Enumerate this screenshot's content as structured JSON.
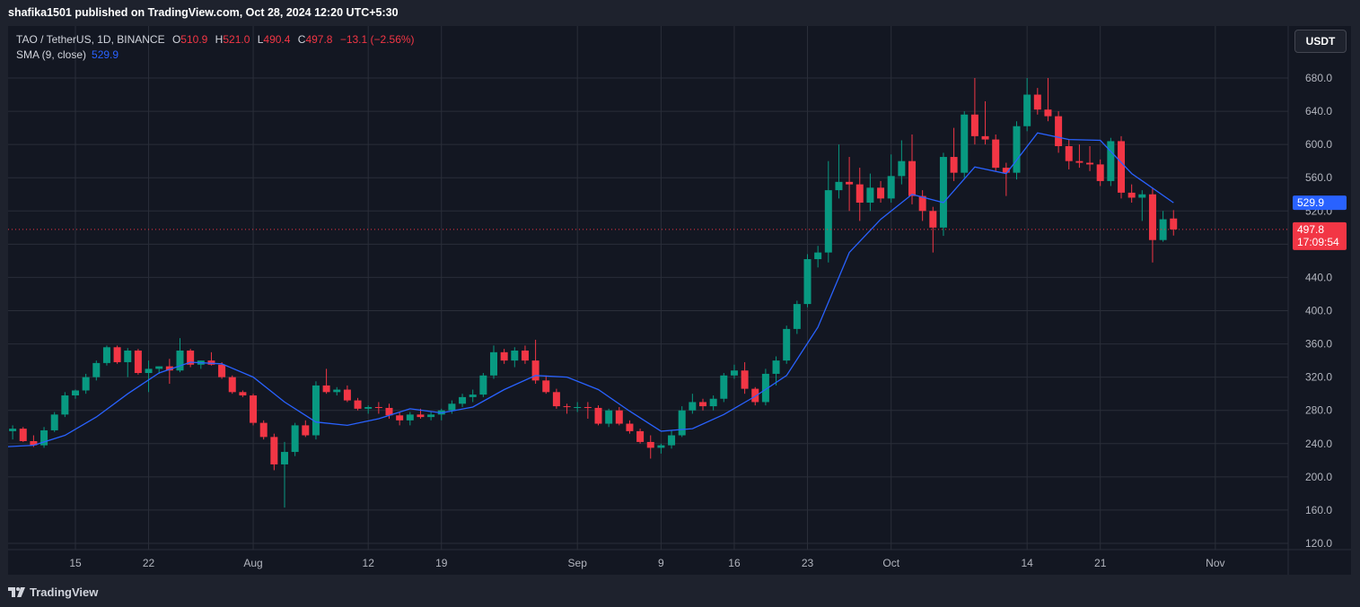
{
  "header": {
    "published": "shafika1501 published on TradingView.com, Oct 28, 2024 12:20 UTC+5:30"
  },
  "legend": {
    "symbol": "TAO / TetherUS, 1D, BINANCE",
    "open_key": "O",
    "open": "510.9",
    "high_key": "H",
    "high": "521.0",
    "low_key": "L",
    "low": "490.4",
    "close_key": "C",
    "close": "497.8",
    "change": "−13.1 (−2.56%)",
    "sma_label": "SMA (9, close)",
    "sma_value": "529.9"
  },
  "currency_button": "USDT",
  "footer": {
    "brand": "TradingView"
  },
  "colors": {
    "up": "#089981",
    "down": "#f23645",
    "sma": "#2962ff",
    "background": "#131722",
    "grid": "#2a2e39"
  },
  "chart_data": {
    "type": "candlestick",
    "y_axis": {
      "min": 100,
      "max": 720,
      "ticks": [
        120,
        160,
        200,
        240,
        280,
        320,
        360,
        400,
        440,
        480,
        520,
        560,
        600,
        640,
        680
      ]
    },
    "x_labels": [
      "15",
      "22",
      "Aug",
      "12",
      "19",
      "Sep",
      "9",
      "16",
      "23",
      "Oct",
      "14",
      "21",
      "Nov"
    ],
    "x_label_dates": [
      "2024-07-15",
      "2024-07-22",
      "2024-08-01",
      "2024-08-12",
      "2024-08-19",
      "2024-09-01",
      "2024-09-09",
      "2024-09-16",
      "2024-09-23",
      "2024-10-01",
      "2024-10-14",
      "2024-10-21",
      "2024-11-01"
    ],
    "candles": [
      {
        "date": "2024-07-08",
        "o": 232,
        "h": 268,
        "l": 230,
        "c": 255
      },
      {
        "date": "2024-07-09",
        "o": 255,
        "h": 262,
        "l": 245,
        "c": 258
      },
      {
        "date": "2024-07-10",
        "o": 258,
        "h": 260,
        "l": 242,
        "c": 243
      },
      {
        "date": "2024-07-11",
        "o": 243,
        "h": 250,
        "l": 236,
        "c": 238
      },
      {
        "date": "2024-07-12",
        "o": 238,
        "h": 260,
        "l": 235,
        "c": 256
      },
      {
        "date": "2024-07-13",
        "o": 256,
        "h": 278,
        "l": 254,
        "c": 275
      },
      {
        "date": "2024-07-14",
        "o": 275,
        "h": 302,
        "l": 272,
        "c": 298
      },
      {
        "date": "2024-07-15",
        "o": 298,
        "h": 305,
        "l": 294,
        "c": 304
      },
      {
        "date": "2024-07-16",
        "o": 304,
        "h": 324,
        "l": 300,
        "c": 320
      },
      {
        "date": "2024-07-17",
        "o": 320,
        "h": 340,
        "l": 316,
        "c": 337
      },
      {
        "date": "2024-07-18",
        "o": 337,
        "h": 358,
        "l": 334,
        "c": 356
      },
      {
        "date": "2024-07-19",
        "o": 356,
        "h": 358,
        "l": 336,
        "c": 338
      },
      {
        "date": "2024-07-20",
        "o": 338,
        "h": 355,
        "l": 320,
        "c": 352
      },
      {
        "date": "2024-07-21",
        "o": 352,
        "h": 354,
        "l": 323,
        "c": 325
      },
      {
        "date": "2024-07-22",
        "o": 325,
        "h": 340,
        "l": 302,
        "c": 330
      },
      {
        "date": "2024-07-23",
        "o": 330,
        "h": 333,
        "l": 324,
        "c": 333
      },
      {
        "date": "2024-07-24",
        "o": 333,
        "h": 342,
        "l": 312,
        "c": 328
      },
      {
        "date": "2024-07-25",
        "o": 328,
        "h": 367,
        "l": 326,
        "c": 352
      },
      {
        "date": "2024-07-26",
        "o": 352,
        "h": 354,
        "l": 332,
        "c": 335
      },
      {
        "date": "2024-07-27",
        "o": 335,
        "h": 340,
        "l": 330,
        "c": 340
      },
      {
        "date": "2024-07-28",
        "o": 340,
        "h": 350,
        "l": 334,
        "c": 335
      },
      {
        "date": "2024-07-29",
        "o": 335,
        "h": 338,
        "l": 318,
        "c": 320
      },
      {
        "date": "2024-07-30",
        "o": 320,
        "h": 322,
        "l": 300,
        "c": 302
      },
      {
        "date": "2024-07-31",
        "o": 302,
        "h": 304,
        "l": 296,
        "c": 298
      },
      {
        "date": "2024-08-01",
        "o": 298,
        "h": 300,
        "l": 262,
        "c": 265
      },
      {
        "date": "2024-08-02",
        "o": 265,
        "h": 268,
        "l": 245,
        "c": 248
      },
      {
        "date": "2024-08-03",
        "o": 248,
        "h": 252,
        "l": 208,
        "c": 215
      },
      {
        "date": "2024-08-04",
        "o": 215,
        "h": 242,
        "l": 163,
        "c": 230
      },
      {
        "date": "2024-08-05",
        "o": 230,
        "h": 265,
        "l": 225,
        "c": 262
      },
      {
        "date": "2024-08-06",
        "o": 262,
        "h": 268,
        "l": 248,
        "c": 250
      },
      {
        "date": "2024-08-07",
        "o": 250,
        "h": 315,
        "l": 245,
        "c": 310
      },
      {
        "date": "2024-08-08",
        "o": 310,
        "h": 330,
        "l": 300,
        "c": 302
      },
      {
        "date": "2024-08-09",
        "o": 302,
        "h": 308,
        "l": 298,
        "c": 305
      },
      {
        "date": "2024-08-10",
        "o": 305,
        "h": 310,
        "l": 290,
        "c": 292
      },
      {
        "date": "2024-08-11",
        "o": 292,
        "h": 295,
        "l": 280,
        "c": 282
      },
      {
        "date": "2024-08-12",
        "o": 282,
        "h": 286,
        "l": 276,
        "c": 284
      },
      {
        "date": "2024-08-13",
        "o": 284,
        "h": 290,
        "l": 276,
        "c": 283
      },
      {
        "date": "2024-08-14",
        "o": 283,
        "h": 288,
        "l": 270,
        "c": 274
      },
      {
        "date": "2024-08-15",
        "o": 274,
        "h": 278,
        "l": 262,
        "c": 268
      },
      {
        "date": "2024-08-16",
        "o": 268,
        "h": 278,
        "l": 262,
        "c": 275
      },
      {
        "date": "2024-08-17",
        "o": 275,
        "h": 282,
        "l": 270,
        "c": 272
      },
      {
        "date": "2024-08-18",
        "o": 272,
        "h": 278,
        "l": 268,
        "c": 275
      },
      {
        "date": "2024-08-19",
        "o": 275,
        "h": 282,
        "l": 268,
        "c": 280
      },
      {
        "date": "2024-08-20",
        "o": 280,
        "h": 292,
        "l": 276,
        "c": 288
      },
      {
        "date": "2024-08-21",
        "o": 288,
        "h": 300,
        "l": 284,
        "c": 296
      },
      {
        "date": "2024-08-22",
        "o": 296,
        "h": 305,
        "l": 290,
        "c": 299
      },
      {
        "date": "2024-08-23",
        "o": 299,
        "h": 325,
        "l": 296,
        "c": 322
      },
      {
        "date": "2024-08-24",
        "o": 322,
        "h": 358,
        "l": 318,
        "c": 350
      },
      {
        "date": "2024-08-25",
        "o": 350,
        "h": 354,
        "l": 336,
        "c": 340
      },
      {
        "date": "2024-08-26",
        "o": 340,
        "h": 356,
        "l": 332,
        "c": 352
      },
      {
        "date": "2024-08-27",
        "o": 352,
        "h": 358,
        "l": 336,
        "c": 340
      },
      {
        "date": "2024-08-28",
        "o": 340,
        "h": 365,
        "l": 312,
        "c": 316
      },
      {
        "date": "2024-08-29",
        "o": 316,
        "h": 322,
        "l": 300,
        "c": 302
      },
      {
        "date": "2024-08-30",
        "o": 302,
        "h": 306,
        "l": 282,
        "c": 285
      },
      {
        "date": "2024-08-31",
        "o": 285,
        "h": 288,
        "l": 276,
        "c": 284
      },
      {
        "date": "2024-09-01",
        "o": 284,
        "h": 290,
        "l": 278,
        "c": 284
      },
      {
        "date": "2024-09-02",
        "o": 284,
        "h": 290,
        "l": 270,
        "c": 283
      },
      {
        "date": "2024-09-03",
        "o": 283,
        "h": 286,
        "l": 262,
        "c": 264
      },
      {
        "date": "2024-09-04",
        "o": 264,
        "h": 282,
        "l": 260,
        "c": 280
      },
      {
        "date": "2024-09-05",
        "o": 280,
        "h": 284,
        "l": 262,
        "c": 264
      },
      {
        "date": "2024-09-06",
        "o": 264,
        "h": 268,
        "l": 252,
        "c": 255
      },
      {
        "date": "2024-09-07",
        "o": 255,
        "h": 258,
        "l": 240,
        "c": 242
      },
      {
        "date": "2024-09-08",
        "o": 242,
        "h": 250,
        "l": 222,
        "c": 235
      },
      {
        "date": "2024-09-09",
        "o": 235,
        "h": 240,
        "l": 228,
        "c": 238
      },
      {
        "date": "2024-09-10",
        "o": 238,
        "h": 256,
        "l": 234,
        "c": 250
      },
      {
        "date": "2024-09-11",
        "o": 250,
        "h": 285,
        "l": 248,
        "c": 280
      },
      {
        "date": "2024-09-12",
        "o": 280,
        "h": 300,
        "l": 276,
        "c": 290
      },
      {
        "date": "2024-09-13",
        "o": 290,
        "h": 294,
        "l": 280,
        "c": 285
      },
      {
        "date": "2024-09-14",
        "o": 285,
        "h": 298,
        "l": 280,
        "c": 294
      },
      {
        "date": "2024-09-15",
        "o": 294,
        "h": 325,
        "l": 290,
        "c": 322
      },
      {
        "date": "2024-09-16",
        "o": 322,
        "h": 335,
        "l": 318,
        "c": 328
      },
      {
        "date": "2024-09-17",
        "o": 328,
        "h": 338,
        "l": 300,
        "c": 306
      },
      {
        "date": "2024-09-18",
        "o": 306,
        "h": 308,
        "l": 286,
        "c": 290
      },
      {
        "date": "2024-09-19",
        "o": 290,
        "h": 330,
        "l": 286,
        "c": 324
      },
      {
        "date": "2024-09-20",
        "o": 324,
        "h": 345,
        "l": 310,
        "c": 340
      },
      {
        "date": "2024-09-21",
        "o": 340,
        "h": 382,
        "l": 336,
        "c": 378
      },
      {
        "date": "2024-09-22",
        "o": 378,
        "h": 412,
        "l": 372,
        "c": 408
      },
      {
        "date": "2024-09-23",
        "o": 408,
        "h": 468,
        "l": 404,
        "c": 462
      },
      {
        "date": "2024-09-24",
        "o": 462,
        "h": 478,
        "l": 452,
        "c": 470
      },
      {
        "date": "2024-09-25",
        "o": 470,
        "h": 580,
        "l": 458,
        "c": 545
      },
      {
        "date": "2024-09-26",
        "o": 545,
        "h": 600,
        "l": 535,
        "c": 555
      },
      {
        "date": "2024-09-27",
        "o": 555,
        "h": 585,
        "l": 520,
        "c": 552
      },
      {
        "date": "2024-09-28",
        "o": 552,
        "h": 572,
        "l": 508,
        "c": 530
      },
      {
        "date": "2024-09-29",
        "o": 530,
        "h": 565,
        "l": 520,
        "c": 548
      },
      {
        "date": "2024-09-30",
        "o": 548,
        "h": 556,
        "l": 530,
        "c": 535
      },
      {
        "date": "2024-10-01",
        "o": 535,
        "h": 588,
        "l": 530,
        "c": 562
      },
      {
        "date": "2024-10-02",
        "o": 562,
        "h": 605,
        "l": 552,
        "c": 580
      },
      {
        "date": "2024-10-03",
        "o": 580,
        "h": 612,
        "l": 528,
        "c": 538
      },
      {
        "date": "2024-10-04",
        "o": 538,
        "h": 545,
        "l": 508,
        "c": 520
      },
      {
        "date": "2024-10-05",
        "o": 520,
        "h": 525,
        "l": 470,
        "c": 500
      },
      {
        "date": "2024-10-06",
        "o": 500,
        "h": 590,
        "l": 490,
        "c": 585
      },
      {
        "date": "2024-10-07",
        "o": 585,
        "h": 620,
        "l": 556,
        "c": 566
      },
      {
        "date": "2024-10-08",
        "o": 566,
        "h": 640,
        "l": 560,
        "c": 636
      },
      {
        "date": "2024-10-09",
        "o": 636,
        "h": 680,
        "l": 600,
        "c": 610
      },
      {
        "date": "2024-10-10",
        "o": 610,
        "h": 652,
        "l": 600,
        "c": 606
      },
      {
        "date": "2024-10-11",
        "o": 606,
        "h": 612,
        "l": 568,
        "c": 572
      },
      {
        "date": "2024-10-12",
        "o": 572,
        "h": 578,
        "l": 538,
        "c": 566
      },
      {
        "date": "2024-10-13",
        "o": 566,
        "h": 628,
        "l": 558,
        "c": 622
      },
      {
        "date": "2024-10-14",
        "o": 622,
        "h": 680,
        "l": 616,
        "c": 660
      },
      {
        "date": "2024-10-15",
        "o": 660,
        "h": 668,
        "l": 636,
        "c": 642
      },
      {
        "date": "2024-10-16",
        "o": 642,
        "h": 680,
        "l": 628,
        "c": 634
      },
      {
        "date": "2024-10-17",
        "o": 634,
        "h": 640,
        "l": 590,
        "c": 598
      },
      {
        "date": "2024-10-18",
        "o": 598,
        "h": 606,
        "l": 570,
        "c": 580
      },
      {
        "date": "2024-10-19",
        "o": 580,
        "h": 600,
        "l": 572,
        "c": 578
      },
      {
        "date": "2024-10-20",
        "o": 578,
        "h": 598,
        "l": 568,
        "c": 576
      },
      {
        "date": "2024-10-21",
        "o": 576,
        "h": 582,
        "l": 550,
        "c": 556
      },
      {
        "date": "2024-10-22",
        "o": 556,
        "h": 608,
        "l": 550,
        "c": 604
      },
      {
        "date": "2024-10-23",
        "o": 604,
        "h": 610,
        "l": 535,
        "c": 542
      },
      {
        "date": "2024-10-24",
        "o": 542,
        "h": 552,
        "l": 530,
        "c": 536
      },
      {
        "date": "2024-10-25",
        "o": 536,
        "h": 545,
        "l": 508,
        "c": 540
      },
      {
        "date": "2024-10-26",
        "o": 540,
        "h": 548,
        "l": 458,
        "c": 485
      },
      {
        "date": "2024-10-27",
        "o": 485,
        "h": 520,
        "l": 483,
        "c": 510
      },
      {
        "date": "2024-10-28",
        "o": 510.9,
        "h": 521.0,
        "l": 490.4,
        "c": 497.8
      }
    ],
    "sma": {
      "name": "SMA (9, close)",
      "values": [
        {
          "date": "2024-07-08",
          "v": 236
        },
        {
          "date": "2024-07-11",
          "v": 238
        },
        {
          "date": "2024-07-14",
          "v": 250
        },
        {
          "date": "2024-07-17",
          "v": 272
        },
        {
          "date": "2024-07-20",
          "v": 300
        },
        {
          "date": "2024-07-23",
          "v": 325
        },
        {
          "date": "2024-07-26",
          "v": 338
        },
        {
          "date": "2024-07-29",
          "v": 336
        },
        {
          "date": "2024-08-01",
          "v": 320
        },
        {
          "date": "2024-08-04",
          "v": 290
        },
        {
          "date": "2024-08-07",
          "v": 266
        },
        {
          "date": "2024-08-10",
          "v": 262
        },
        {
          "date": "2024-08-13",
          "v": 270
        },
        {
          "date": "2024-08-16",
          "v": 282
        },
        {
          "date": "2024-08-19",
          "v": 277
        },
        {
          "date": "2024-08-22",
          "v": 284
        },
        {
          "date": "2024-08-25",
          "v": 305
        },
        {
          "date": "2024-08-28",
          "v": 322
        },
        {
          "date": "2024-08-31",
          "v": 320
        },
        {
          "date": "2024-09-03",
          "v": 305
        },
        {
          "date": "2024-09-06",
          "v": 279
        },
        {
          "date": "2024-09-09",
          "v": 255
        },
        {
          "date": "2024-09-12",
          "v": 258
        },
        {
          "date": "2024-09-15",
          "v": 275
        },
        {
          "date": "2024-09-18",
          "v": 297
        },
        {
          "date": "2024-09-21",
          "v": 322
        },
        {
          "date": "2024-09-24",
          "v": 380
        },
        {
          "date": "2024-09-27",
          "v": 470
        },
        {
          "date": "2024-09-30",
          "v": 510
        },
        {
          "date": "2024-10-03",
          "v": 540
        },
        {
          "date": "2024-10-06",
          "v": 530
        },
        {
          "date": "2024-10-09",
          "v": 573
        },
        {
          "date": "2024-10-12",
          "v": 565
        },
        {
          "date": "2024-10-15",
          "v": 614
        },
        {
          "date": "2024-10-18",
          "v": 606
        },
        {
          "date": "2024-10-21",
          "v": 605
        },
        {
          "date": "2024-10-24",
          "v": 565
        },
        {
          "date": "2024-10-28",
          "v": 529.9
        }
      ]
    },
    "last_price_label": "497.8",
    "countdown_label": "17:09:54",
    "sma_price_label": "529.9"
  }
}
